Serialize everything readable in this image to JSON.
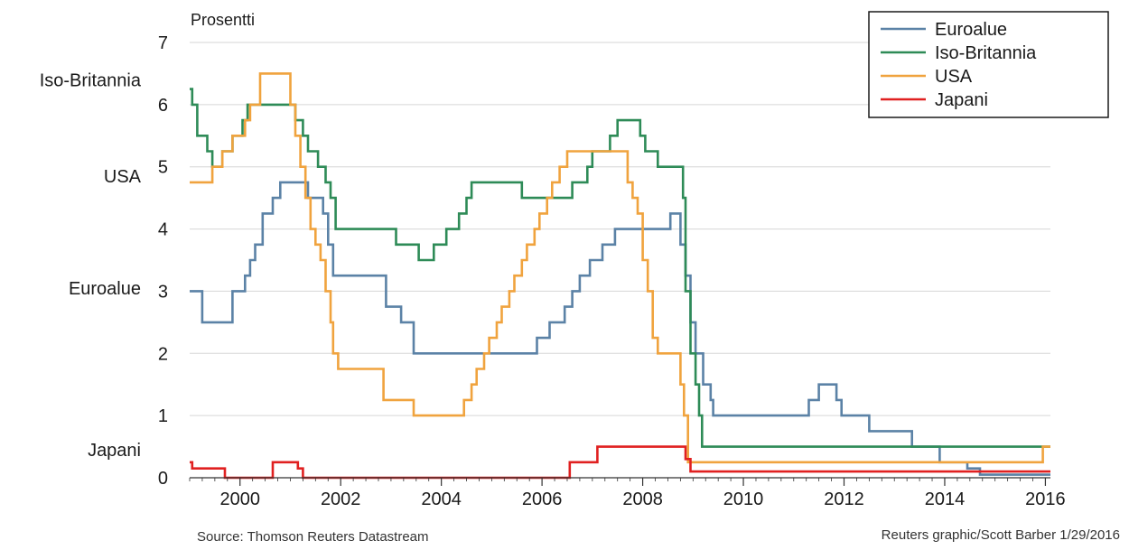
{
  "chart_data": {
    "type": "line",
    "step": true,
    "y_unit_label": "Prosentti",
    "ylim": [
      0,
      7
    ],
    "y_ticks": [
      0,
      1,
      2,
      3,
      4,
      5,
      6,
      7
    ],
    "xlim": [
      1999.0,
      2016.1
    ],
    "x_ticks": [
      2000,
      2002,
      2004,
      2006,
      2008,
      2010,
      2012,
      2014,
      2016
    ],
    "grid": "horizontal",
    "legend_position": "top-right",
    "side_labels": [
      {
        "text": "Iso-Britannia",
        "y": 6.4
      },
      {
        "text": "USA",
        "y": 4.85
      },
      {
        "text": "Euroalue",
        "y": 3.05
      },
      {
        "text": "Japani",
        "y": 0.45
      }
    ],
    "series": [
      {
        "name": "Euroalue",
        "color": "#5b82a6",
        "points": [
          [
            1999.0,
            3.0
          ],
          [
            1999.25,
            2.5
          ],
          [
            1999.85,
            3.0
          ],
          [
            2000.1,
            3.25
          ],
          [
            2000.2,
            3.5
          ],
          [
            2000.3,
            3.75
          ],
          [
            2000.45,
            4.25
          ],
          [
            2000.65,
            4.5
          ],
          [
            2000.8,
            4.75
          ],
          [
            2001.35,
            4.5
          ],
          [
            2001.65,
            4.25
          ],
          [
            2001.75,
            3.75
          ],
          [
            2001.85,
            3.25
          ],
          [
            2002.9,
            2.75
          ],
          [
            2003.2,
            2.5
          ],
          [
            2003.45,
            2.0
          ],
          [
            2005.9,
            2.25
          ],
          [
            2006.15,
            2.5
          ],
          [
            2006.45,
            2.75
          ],
          [
            2006.6,
            3.0
          ],
          [
            2006.75,
            3.25
          ],
          [
            2006.95,
            3.5
          ],
          [
            2007.2,
            3.75
          ],
          [
            2007.45,
            4.0
          ],
          [
            2008.55,
            4.25
          ],
          [
            2008.75,
            3.75
          ],
          [
            2008.85,
            3.25
          ],
          [
            2008.95,
            2.5
          ],
          [
            2009.05,
            2.0
          ],
          [
            2009.2,
            1.5
          ],
          [
            2009.35,
            1.25
          ],
          [
            2009.4,
            1.0
          ],
          [
            2011.3,
            1.25
          ],
          [
            2011.5,
            1.5
          ],
          [
            2011.85,
            1.25
          ],
          [
            2011.95,
            1.0
          ],
          [
            2012.5,
            0.75
          ],
          [
            2013.35,
            0.5
          ],
          [
            2013.9,
            0.25
          ],
          [
            2014.45,
            0.15
          ],
          [
            2014.7,
            0.05
          ],
          [
            2016.1,
            0.05
          ]
        ]
      },
      {
        "name": "Iso-Britannia",
        "color": "#2e8b57",
        "points": [
          [
            1999.0,
            6.25
          ],
          [
            1999.05,
            6.0
          ],
          [
            1999.15,
            5.5
          ],
          [
            1999.35,
            5.25
          ],
          [
            1999.45,
            5.0
          ],
          [
            1999.65,
            5.25
          ],
          [
            1999.85,
            5.5
          ],
          [
            2000.05,
            5.75
          ],
          [
            2000.15,
            6.0
          ],
          [
            2001.1,
            5.75
          ],
          [
            2001.25,
            5.5
          ],
          [
            2001.35,
            5.25
          ],
          [
            2001.55,
            5.0
          ],
          [
            2001.7,
            4.75
          ],
          [
            2001.8,
            4.5
          ],
          [
            2001.9,
            4.0
          ],
          [
            2003.1,
            3.75
          ],
          [
            2003.55,
            3.5
          ],
          [
            2003.85,
            3.75
          ],
          [
            2004.1,
            4.0
          ],
          [
            2004.35,
            4.25
          ],
          [
            2004.5,
            4.5
          ],
          [
            2004.6,
            4.75
          ],
          [
            2005.6,
            4.5
          ],
          [
            2006.6,
            4.75
          ],
          [
            2006.9,
            5.0
          ],
          [
            2007.0,
            5.25
          ],
          [
            2007.35,
            5.5
          ],
          [
            2007.5,
            5.75
          ],
          [
            2007.95,
            5.5
          ],
          [
            2008.05,
            5.25
          ],
          [
            2008.3,
            5.0
          ],
          [
            2008.8,
            4.5
          ],
          [
            2008.85,
            3.0
          ],
          [
            2008.95,
            2.0
          ],
          [
            2009.05,
            1.5
          ],
          [
            2009.12,
            1.0
          ],
          [
            2009.18,
            0.5
          ],
          [
            2016.1,
            0.5
          ]
        ]
      },
      {
        "name": "USA",
        "color": "#f0a33e",
        "points": [
          [
            1999.0,
            4.75
          ],
          [
            1999.45,
            5.0
          ],
          [
            1999.65,
            5.25
          ],
          [
            1999.85,
            5.5
          ],
          [
            2000.1,
            5.75
          ],
          [
            2000.2,
            6.0
          ],
          [
            2000.4,
            6.5
          ],
          [
            2001.0,
            6.0
          ],
          [
            2001.1,
            5.5
          ],
          [
            2001.2,
            5.0
          ],
          [
            2001.3,
            4.5
          ],
          [
            2001.4,
            4.0
          ],
          [
            2001.5,
            3.75
          ],
          [
            2001.6,
            3.5
          ],
          [
            2001.7,
            3.0
          ],
          [
            2001.8,
            2.5
          ],
          [
            2001.85,
            2.0
          ],
          [
            2001.95,
            1.75
          ],
          [
            2002.85,
            1.25
          ],
          [
            2003.45,
            1.0
          ],
          [
            2004.45,
            1.25
          ],
          [
            2004.6,
            1.5
          ],
          [
            2004.7,
            1.75
          ],
          [
            2004.85,
            2.0
          ],
          [
            2004.95,
            2.25
          ],
          [
            2005.1,
            2.5
          ],
          [
            2005.2,
            2.75
          ],
          [
            2005.35,
            3.0
          ],
          [
            2005.45,
            3.25
          ],
          [
            2005.6,
            3.5
          ],
          [
            2005.7,
            3.75
          ],
          [
            2005.85,
            4.0
          ],
          [
            2005.95,
            4.25
          ],
          [
            2006.1,
            4.5
          ],
          [
            2006.2,
            4.75
          ],
          [
            2006.35,
            5.0
          ],
          [
            2006.5,
            5.25
          ],
          [
            2007.7,
            4.75
          ],
          [
            2007.8,
            4.5
          ],
          [
            2007.9,
            4.25
          ],
          [
            2008.0,
            3.5
          ],
          [
            2008.1,
            3.0
          ],
          [
            2008.2,
            2.25
          ],
          [
            2008.3,
            2.0
          ],
          [
            2008.75,
            1.5
          ],
          [
            2008.82,
            1.0
          ],
          [
            2008.9,
            0.25
          ],
          [
            2015.95,
            0.5
          ],
          [
            2016.1,
            0.5
          ]
        ]
      },
      {
        "name": "Japani",
        "color": "#e02020",
        "points": [
          [
            1999.0,
            0.25
          ],
          [
            1999.05,
            0.15
          ],
          [
            1999.7,
            0.0
          ],
          [
            2000.65,
            0.25
          ],
          [
            2001.15,
            0.15
          ],
          [
            2001.25,
            0.0
          ],
          [
            2006.55,
            0.25
          ],
          [
            2007.1,
            0.5
          ],
          [
            2008.85,
            0.3
          ],
          [
            2008.95,
            0.1
          ],
          [
            2016.1,
            0.1
          ]
        ]
      }
    ]
  },
  "footer": {
    "source": "Source: Thomson Reuters Datastream",
    "credit": "Reuters graphic/Scott Barber 1/29/2016"
  }
}
